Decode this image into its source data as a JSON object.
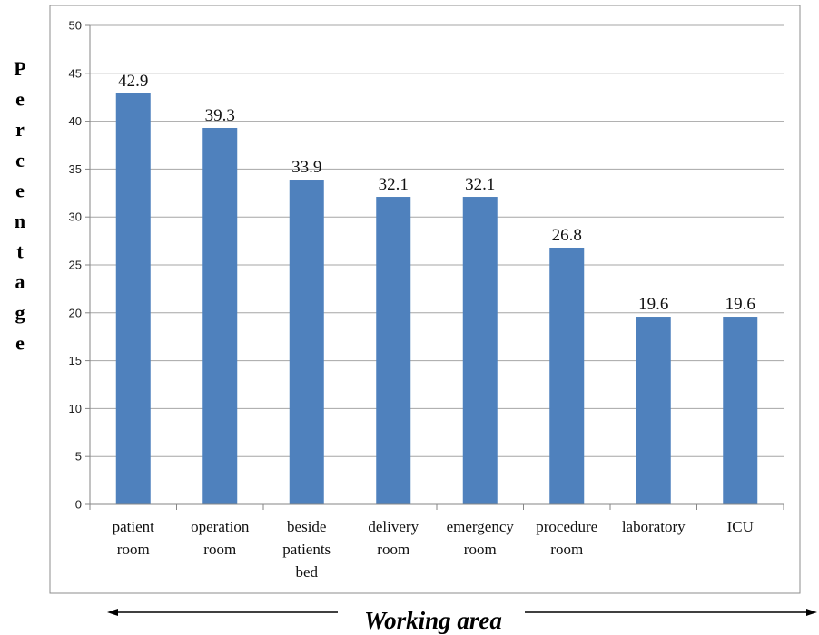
{
  "chart_data": {
    "type": "bar",
    "xlabel": "Working area",
    "ylabel": "Percentage",
    "ylim": [
      0,
      50
    ],
    "ytick_step": 5,
    "grid": true,
    "categories": [
      [
        "patient",
        "room"
      ],
      [
        "operation",
        "room"
      ],
      [
        "beside",
        "patients",
        "bed"
      ],
      [
        "delivery",
        "room"
      ],
      [
        "emergency",
        "room"
      ],
      [
        "procedure",
        "room"
      ],
      [
        "laboratory"
      ],
      [
        "ICU"
      ]
    ],
    "values": [
      42.9,
      39.3,
      33.9,
      32.1,
      32.1,
      26.8,
      19.6,
      19.6
    ],
    "bar_color": "#4f81bd",
    "grid_color": "#a6a6a6"
  }
}
